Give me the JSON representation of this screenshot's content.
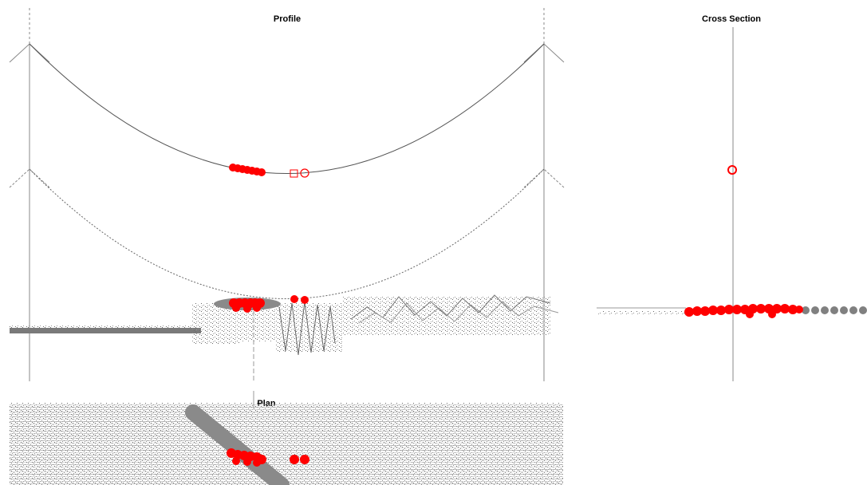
{
  "titles": {
    "profile": "Profile",
    "cross_section": "Cross Section",
    "plan": "Plan"
  },
  "colors": {
    "background": "#ffffff",
    "wire": "#555555",
    "structure": "#888888",
    "ground_points": "#777777",
    "conflict_points": "#ff0000",
    "corridor_band": "#8a8a8a"
  }
}
